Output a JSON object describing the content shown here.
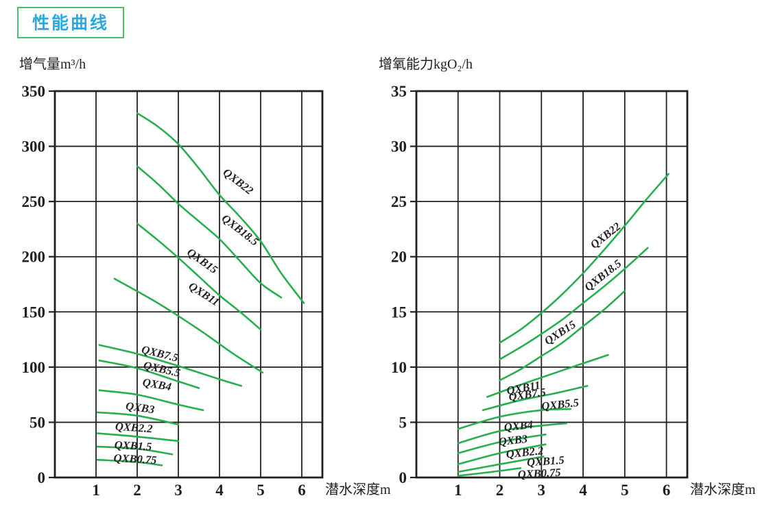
{
  "badge": {
    "label": "性能曲线"
  },
  "colors": {
    "curve": "#27ae4f",
    "badge_border": "#46c068",
    "title_text": "#29a9e1",
    "ink": "#231f20"
  },
  "chart_data": [
    {
      "type": "line",
      "title": "增气量m³/h",
      "ylabel": "增气量m³/h",
      "xlabel": "潜水深度m",
      "xlim": [
        0,
        6.5
      ],
      "xticks": [
        1,
        2,
        3,
        4,
        5,
        6
      ],
      "ylim": [
        0,
        350
      ],
      "yticks": [
        0,
        50,
        100,
        150,
        200,
        250,
        300,
        350
      ],
      "grid": true,
      "legend_position": "inline-labels",
      "series": [
        {
          "name": "QXB22",
          "points": [
            [
              2,
              330
            ],
            [
              2.5,
              318
            ],
            [
              3,
              302
            ],
            [
              3.5,
              280
            ],
            [
              4,
              256
            ],
            [
              4.5,
              236
            ],
            [
              5,
              214
            ],
            [
              5.5,
              185
            ],
            [
              6.05,
              158
            ]
          ],
          "label": {
            "x": 4.45,
            "y": 268,
            "rotate": 38
          }
        },
        {
          "name": "QXB18.5",
          "points": [
            [
              2,
              282
            ],
            [
              2.5,
              266
            ],
            [
              3,
              248
            ],
            [
              3.5,
              232
            ],
            [
              4,
              216
            ],
            [
              4.5,
              196
            ],
            [
              5,
              176
            ],
            [
              5.5,
              163
            ]
          ],
          "label": {
            "x": 4.5,
            "y": 224,
            "rotate": 38
          }
        },
        {
          "name": "QXB15",
          "points": [
            [
              2,
              230
            ],
            [
              2.5,
              215
            ],
            [
              3,
              199
            ],
            [
              3.5,
              182
            ],
            [
              4,
              165
            ],
            [
              4.5,
              150
            ],
            [
              5,
              134
            ]
          ],
          "label": {
            "x": 3.58,
            "y": 196,
            "rotate": 36
          }
        },
        {
          "name": "QXB11",
          "points": [
            [
              1.45,
              180
            ],
            [
              2.5,
              158
            ],
            [
              3.5,
              134
            ],
            [
              4.3,
              113
            ],
            [
              5.05,
              95
            ]
          ],
          "label": {
            "x": 3.62,
            "y": 166,
            "rotate": 33
          }
        },
        {
          "name": "QXB7.5",
          "points": [
            [
              1.08,
              120
            ],
            [
              2,
              112
            ],
            [
              3,
              101
            ],
            [
              4,
              89
            ],
            [
              4.53,
              83
            ]
          ],
          "label": {
            "x": 2.55,
            "y": 112,
            "rotate": 14
          }
        },
        {
          "name": "QXB5.5",
          "points": [
            [
              1.08,
              106
            ],
            [
              2,
              99
            ],
            [
              3,
              87
            ],
            [
              3.5,
              81
            ]
          ],
          "label": {
            "x": 2.6,
            "y": 98,
            "rotate": 13
          }
        },
        {
          "name": "QXB4",
          "points": [
            [
              1.08,
              79
            ],
            [
              2,
              75
            ],
            [
              3,
              66
            ],
            [
              3.6,
              61
            ]
          ],
          "label": {
            "x": 2.48,
            "y": 84,
            "rotate": 10
          }
        },
        {
          "name": "QXB3",
          "points": [
            [
              1.03,
              59
            ],
            [
              2,
              56
            ],
            [
              3,
              48
            ]
          ],
          "label": {
            "x": 2.07,
            "y": 63,
            "rotate": 8
          }
        },
        {
          "name": "QXB2.2",
          "points": [
            [
              1.03,
              40
            ],
            [
              2,
              37
            ],
            [
              3,
              33
            ]
          ],
          "label": {
            "x": 1.92,
            "y": 45,
            "rotate": 4
          }
        },
        {
          "name": "QXB1.5",
          "points": [
            [
              1.03,
              28
            ],
            [
              2,
              26
            ],
            [
              2.85,
              21
            ]
          ],
          "label": {
            "x": 1.9,
            "y": 28.5,
            "rotate": 3
          }
        },
        {
          "name": "QXB0.75",
          "points": [
            [
              1.03,
              16
            ],
            [
              2,
              14
            ],
            [
              2.6,
              11
            ]
          ],
          "label": {
            "x": 1.95,
            "y": 16.5,
            "rotate": 3
          }
        }
      ]
    },
    {
      "type": "line",
      "title": "增氧能力kgO₂/h",
      "ylabel": "增氧能力kgO₂/h",
      "xlabel": "潜水深度m",
      "xlim": [
        0,
        6.5
      ],
      "xticks": [
        1,
        2,
        3,
        4,
        5,
        6
      ],
      "ylim": [
        0,
        35
      ],
      "yticks": [
        0,
        5,
        10,
        15,
        20,
        25,
        30,
        35
      ],
      "grid": true,
      "legend_position": "inline-labels",
      "series": [
        {
          "name": "QXB22",
          "points": [
            [
              2,
              12.2
            ],
            [
              2.5,
              13.4
            ],
            [
              3,
              14.9
            ],
            [
              3.5,
              16.6
            ],
            [
              4,
              18.5
            ],
            [
              4.5,
              20.6
            ],
            [
              5,
              22.8
            ],
            [
              5.5,
              25.1
            ],
            [
              6.05,
              27.5
            ]
          ],
          "label": {
            "x": 4.54,
            "y": 21.9,
            "rotate": -38
          }
        },
        {
          "name": "QXB18.5",
          "points": [
            [
              2,
              10.7
            ],
            [
              2.5,
              11.8
            ],
            [
              3,
              13
            ],
            [
              3.5,
              14.3
            ],
            [
              4,
              15.8
            ],
            [
              4.5,
              17.3
            ],
            [
              5,
              18.9
            ],
            [
              5.55,
              20.8
            ]
          ],
          "label": {
            "x": 4.48,
            "y": 18.3,
            "rotate": -38
          }
        },
        {
          "name": "QXB15",
          "points": [
            [
              2,
              8.8
            ],
            [
              2.5,
              9.8
            ],
            [
              3,
              11
            ],
            [
              3.5,
              12.2
            ],
            [
              4,
              13.7
            ],
            [
              4.5,
              15.2
            ],
            [
              5,
              16.9
            ]
          ],
          "label": {
            "x": 3.45,
            "y": 13.1,
            "rotate": -33
          }
        },
        {
          "name": "QXB11",
          "points": [
            [
              1.7,
              7.3
            ],
            [
              2.5,
              8.4
            ],
            [
              3.5,
              9.7
            ],
            [
              4.6,
              11.1
            ]
          ],
          "label": {
            "x": 2.57,
            "y": 8.1,
            "rotate": -10
          }
        },
        {
          "name": "QXB7.5",
          "points": [
            [
              1.6,
              6.1
            ],
            [
              2.5,
              7.0
            ],
            [
              3.3,
              7.6
            ],
            [
              4.1,
              8.3
            ]
          ],
          "label": {
            "x": 2.66,
            "y": 7.5,
            "rotate": -8
          }
        },
        {
          "name": "QXB5.5",
          "points": [
            [
              1,
              4.4
            ],
            [
              2,
              5.5
            ],
            [
              3,
              6.1
            ],
            [
              3.7,
              6.2
            ]
          ],
          "label": {
            "x": 3.45,
            "y": 6.6,
            "rotate": -6
          }
        },
        {
          "name": "QXB4",
          "points": [
            [
              1,
              3.1
            ],
            [
              2,
              4.2
            ],
            [
              3,
              4.7
            ],
            [
              3.6,
              4.9
            ]
          ],
          "label": {
            "x": 2.45,
            "y": 4.65,
            "rotate": -6
          }
        },
        {
          "name": "QXB3",
          "points": [
            [
              1,
              2.2
            ],
            [
              2,
              3.2
            ],
            [
              3.1,
              3.9
            ]
          ],
          "label": {
            "x": 2.32,
            "y": 3.35,
            "rotate": -6
          }
        },
        {
          "name": "QXB2.2",
          "points": [
            [
              1,
              1.2
            ],
            [
              2,
              2.2
            ],
            [
              3.1,
              3.0
            ]
          ],
          "label": {
            "x": 2.6,
            "y": 2.25,
            "rotate": -6
          }
        },
        {
          "name": "QXB1.5",
          "points": [
            [
              1,
              0.5
            ],
            [
              2,
              1.2
            ],
            [
              3.05,
              1.9
            ]
          ],
          "label": {
            "x": 3.1,
            "y": 1.45,
            "rotate": -4
          }
        },
        {
          "name": "QXB0.75",
          "points": [
            [
              1,
              0.15
            ],
            [
              1.8,
              0.5
            ],
            [
              2.5,
              0.85
            ]
          ],
          "label": {
            "x": 2.95,
            "y": 0.35,
            "rotate": -3
          }
        }
      ]
    }
  ]
}
